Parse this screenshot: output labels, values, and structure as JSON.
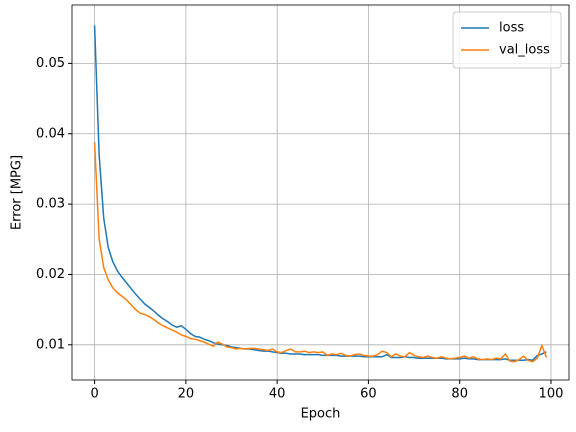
{
  "chart_data": {
    "type": "line",
    "x_label": "Epoch",
    "y_label": "Error [MPG]",
    "x": [
      0,
      1,
      2,
      3,
      4,
      5,
      6,
      7,
      8,
      9,
      10,
      11,
      12,
      13,
      14,
      15,
      16,
      17,
      18,
      19,
      20,
      21,
      22,
      23,
      24,
      25,
      26,
      27,
      28,
      29,
      30,
      31,
      32,
      33,
      34,
      35,
      36,
      37,
      38,
      39,
      40,
      41,
      42,
      43,
      44,
      45,
      46,
      47,
      48,
      49,
      50,
      51,
      52,
      53,
      54,
      55,
      56,
      57,
      58,
      59,
      60,
      61,
      62,
      63,
      64,
      65,
      66,
      67,
      68,
      69,
      70,
      71,
      72,
      73,
      74,
      75,
      76,
      77,
      78,
      79,
      80,
      81,
      82,
      83,
      84,
      85,
      86,
      87,
      88,
      89,
      90,
      91,
      92,
      93,
      94,
      95,
      96,
      97,
      98,
      99
    ],
    "series": [
      {
        "name": "loss",
        "color": "#1f77b4",
        "values": [
          0.0554,
          0.037,
          0.028,
          0.0238,
          0.0218,
          0.0205,
          0.0196,
          0.0188,
          0.018,
          0.0172,
          0.0165,
          0.0158,
          0.0153,
          0.0148,
          0.0142,
          0.0137,
          0.0133,
          0.0128,
          0.0125,
          0.0127,
          0.0122,
          0.0116,
          0.0112,
          0.0111,
          0.0108,
          0.0106,
          0.0103,
          0.0101,
          0.01,
          0.0099,
          0.0097,
          0.0096,
          0.0095,
          0.0094,
          0.0094,
          0.0093,
          0.0092,
          0.0091,
          0.0091,
          0.009,
          0.0089,
          0.0088,
          0.0088,
          0.0087,
          0.0087,
          0.0087,
          0.0086,
          0.0086,
          0.0086,
          0.0086,
          0.0085,
          0.0085,
          0.0085,
          0.0085,
          0.0084,
          0.0084,
          0.0084,
          0.0084,
          0.0084,
          0.0083,
          0.0083,
          0.0083,
          0.0083,
          0.0083,
          0.0086,
          0.0082,
          0.0082,
          0.0082,
          0.0083,
          0.0082,
          0.0082,
          0.0081,
          0.0081,
          0.0081,
          0.0081,
          0.0081,
          0.0081,
          0.008,
          0.008,
          0.008,
          0.008,
          0.0081,
          0.008,
          0.008,
          0.0079,
          0.0079,
          0.0079,
          0.0079,
          0.0079,
          0.0079,
          0.008,
          0.0078,
          0.0078,
          0.0078,
          0.0078,
          0.0079,
          0.0078,
          0.0085,
          0.0087,
          0.009
        ]
      },
      {
        "name": "val_loss",
        "color": "#ff7f0e",
        "values": [
          0.0388,
          0.025,
          0.021,
          0.0192,
          0.0181,
          0.0174,
          0.0169,
          0.0164,
          0.0157,
          0.015,
          0.0145,
          0.0143,
          0.014,
          0.0136,
          0.0131,
          0.0127,
          0.0124,
          0.0121,
          0.0118,
          0.0114,
          0.0112,
          0.0109,
          0.0108,
          0.0106,
          0.0104,
          0.0101,
          0.0098,
          0.0104,
          0.0101,
          0.0097,
          0.0096,
          0.0094,
          0.0095,
          0.0094,
          0.0095,
          0.0095,
          0.0094,
          0.0093,
          0.0092,
          0.0094,
          0.009,
          0.0089,
          0.0092,
          0.0094,
          0.009,
          0.009,
          0.0091,
          0.0089,
          0.009,
          0.0089,
          0.009,
          0.0085,
          0.0087,
          0.0086,
          0.0088,
          0.0085,
          0.0084,
          0.0086,
          0.0087,
          0.0085,
          0.0084,
          0.0084,
          0.0086,
          0.0091,
          0.0089,
          0.0083,
          0.0087,
          0.0084,
          0.0083,
          0.0089,
          0.0085,
          0.0083,
          0.0082,
          0.0084,
          0.0082,
          0.0081,
          0.0083,
          0.0081,
          0.008,
          0.0081,
          0.0082,
          0.0084,
          0.0081,
          0.0083,
          0.008,
          0.0079,
          0.008,
          0.0079,
          0.0081,
          0.008,
          0.0087,
          0.0077,
          0.0076,
          0.0079,
          0.0084,
          0.0078,
          0.0076,
          0.0081,
          0.0099,
          0.0082
        ]
      }
    ],
    "xlim": [
      -4.95,
      103.95
    ],
    "xticks": [
      0,
      20,
      40,
      60,
      80,
      100
    ],
    "ylim": [
      0.005,
      0.0583
    ],
    "yticks": [
      0.01,
      0.02,
      0.03,
      0.04,
      0.05
    ],
    "grid": true,
    "legend": "upper right"
  }
}
